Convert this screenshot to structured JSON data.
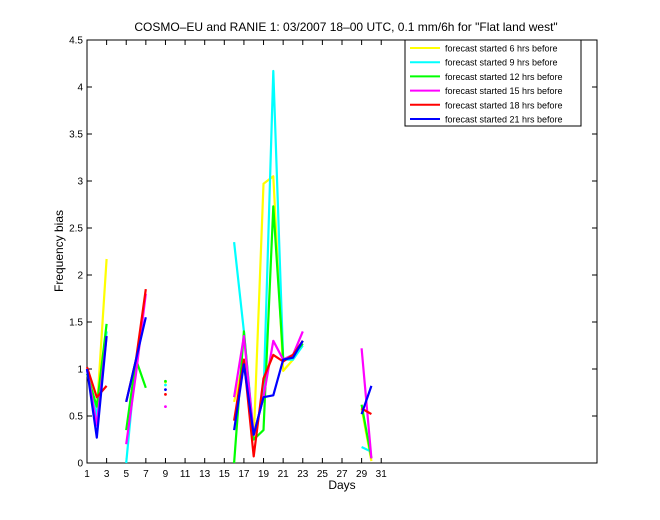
{
  "chart_data": {
    "type": "line",
    "title": "COSMO–EU and RANIE 1: 03/2007 18–00 UTC, 0.1 mm/6h for \"Flat land west\"",
    "xlabel": "Days",
    "ylabel": "Frequency bias",
    "xlim": [
      1,
      53
    ],
    "ylim": [
      0,
      4.5
    ],
    "xticks": [
      1,
      3,
      5,
      7,
      9,
      11,
      13,
      15,
      17,
      19,
      21,
      23,
      25,
      27,
      29,
      31
    ],
    "yticks": [
      0,
      0.5,
      1,
      1.5,
      2,
      2.5,
      3,
      3.5,
      4,
      4.5
    ],
    "ytick_labels": [
      "0",
      "0.5",
      "1",
      "1.5",
      "2",
      "2.5",
      "3",
      "3.5",
      "4",
      "4.5"
    ],
    "grid": false,
    "legend_position": "top-right",
    "series": [
      {
        "name": "forecast started 6 hrs before",
        "color": "#ffff00",
        "values": [
          [
            1,
            1.0
          ],
          [
            2,
            0.55
          ],
          [
            3,
            2.17
          ],
          null,
          [
            9,
            0.86
          ],
          null,
          [
            16,
            0.65
          ],
          [
            17,
            1.1
          ],
          [
            18,
            0.25
          ],
          [
            19,
            2.97
          ],
          [
            20,
            3.05
          ],
          [
            21,
            0.98
          ],
          [
            22,
            1.1
          ],
          [
            23,
            1.3
          ],
          null,
          [
            29,
            0.58
          ],
          [
            30,
            0.02
          ]
        ]
      },
      {
        "name": "forecast started 9 hrs before",
        "color": "#00ffff",
        "values": [
          [
            1,
            1.0
          ],
          [
            2,
            0.5
          ],
          [
            3,
            1.4
          ],
          null,
          [
            5,
            0.0
          ],
          [
            6,
            1.1
          ],
          null,
          [
            9,
            0.83
          ],
          null,
          [
            16,
            2.35
          ],
          [
            17,
            1.4
          ],
          [
            18,
            0.3
          ],
          [
            19,
            0.7
          ],
          [
            20,
            4.17
          ],
          [
            21,
            1.1
          ],
          [
            22,
            1.1
          ],
          [
            23,
            1.25
          ],
          null,
          [
            29,
            0.17
          ],
          [
            30,
            0.12
          ]
        ]
      },
      {
        "name": "forecast started 12 hrs before",
        "color": "#00ff00",
        "values": [
          [
            1,
            0.95
          ],
          [
            2,
            0.6
          ],
          [
            3,
            1.48
          ],
          null,
          [
            5,
            0.35
          ],
          [
            6,
            1.1
          ],
          [
            7,
            0.8
          ],
          null,
          [
            9,
            0.87
          ],
          null,
          [
            16,
            0.0
          ],
          [
            17,
            1.4
          ],
          [
            18,
            0.25
          ],
          [
            19,
            0.35
          ],
          [
            20,
            2.73
          ],
          [
            21,
            1.1
          ],
          [
            22,
            1.15
          ],
          [
            23,
            1.27
          ],
          null,
          [
            29,
            0.62
          ],
          [
            30,
            0.05
          ]
        ]
      },
      {
        "name": "forecast started 15 hrs before",
        "color": "#ff00ff",
        "values": [
          [
            1,
            1.0
          ],
          [
            2,
            0.4
          ],
          [
            3,
            1.35
          ],
          null,
          [
            5,
            0.2
          ],
          [
            6,
            0.95
          ],
          [
            7,
            1.8
          ],
          null,
          [
            9,
            0.6
          ],
          null,
          [
            16,
            0.7
          ],
          [
            17,
            1.35
          ],
          [
            18,
            0.3
          ],
          [
            19,
            0.7
          ],
          [
            20,
            1.3
          ],
          [
            21,
            1.1
          ],
          [
            22,
            1.15
          ],
          [
            23,
            1.4
          ],
          null,
          [
            29,
            1.22
          ],
          [
            30,
            0.05
          ]
        ]
      },
      {
        "name": "forecast started 18 hrs before",
        "color": "#ff0000",
        "values": [
          [
            1,
            1.02
          ],
          [
            2,
            0.7
          ],
          [
            3,
            0.82
          ],
          null,
          [
            5,
            0.65
          ],
          [
            6,
            1.1
          ],
          [
            7,
            1.85
          ],
          null,
          [
            9,
            0.73
          ],
          null,
          [
            16,
            0.45
          ],
          [
            17,
            1.1
          ],
          [
            18,
            0.07
          ],
          [
            19,
            0.9
          ],
          [
            20,
            1.15
          ],
          [
            21,
            1.08
          ],
          [
            22,
            1.15
          ],
          [
            23,
            1.3
          ],
          null,
          [
            29,
            0.58
          ],
          [
            30,
            0.52
          ]
        ]
      },
      {
        "name": "forecast started 21 hrs before",
        "color": "#0000ff",
        "values": [
          [
            1,
            1.0
          ],
          [
            2,
            0.27
          ],
          [
            3,
            1.35
          ],
          null,
          [
            5,
            0.65
          ],
          [
            6,
            1.1
          ],
          [
            7,
            1.55
          ],
          null,
          [
            9,
            0.78
          ],
          null,
          [
            16,
            0.35
          ],
          [
            17,
            1.05
          ],
          [
            18,
            0.3
          ],
          [
            19,
            0.7
          ],
          [
            20,
            0.72
          ],
          [
            21,
            1.1
          ],
          [
            22,
            1.12
          ],
          [
            23,
            1.3
          ],
          null,
          [
            29,
            0.52
          ],
          [
            30,
            0.82
          ]
        ]
      }
    ]
  }
}
